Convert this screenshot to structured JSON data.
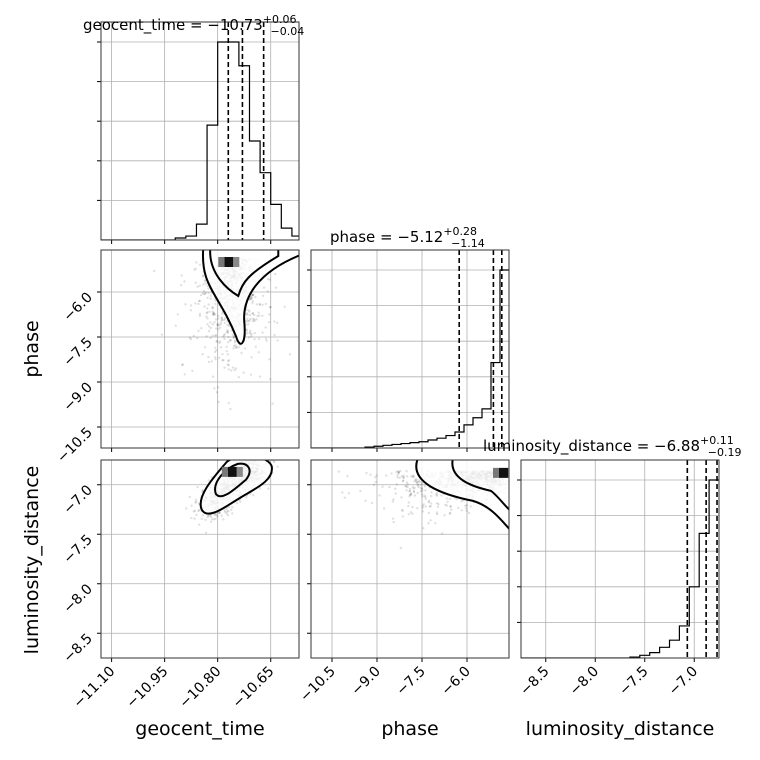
{
  "chart_data": {
    "type": "corner",
    "parameters": [
      "geocent_time",
      "phase",
      "luminosity_distance"
    ],
    "ranges": {
      "geocent_time": [
        -11.13,
        -10.57
      ],
      "phase": [
        -11.2,
        -4.6
      ],
      "luminosity_distance": [
        -8.75,
        -6.75
      ]
    },
    "ticks": {
      "geocent_time": {
        "values": [
          -11.1,
          -10.95,
          -10.8,
          -10.65
        ],
        "labels": [
          "−11.10",
          "−10.95",
          "−10.80",
          "−10.65"
        ]
      },
      "phase": {
        "values": [
          -10.5,
          -9.0,
          -7.5,
          -6.0
        ],
        "labels": [
          "−10.5",
          "−9.0",
          "−7.5",
          "−6.0"
        ]
      },
      "luminosity_distance": {
        "values": [
          -8.5,
          -8.0,
          -7.5,
          -7.0
        ],
        "labels": [
          "−8.5",
          "−8.0",
          "−7.5",
          "−7.0"
        ]
      }
    },
    "diagonal": [
      {
        "parameter": "geocent_time",
        "title": {
          "prefix": "geocent_time = −10.73",
          "plus": "+0.06",
          "minus": "−0.04"
        },
        "median": -10.73,
        "q_low": -10.77,
        "q_high": -10.67,
        "bin_edges": [
          -11.13,
          -11.1,
          -11.07,
          -11.04,
          -11.01,
          -10.98,
          -10.95,
          -10.92,
          -10.89,
          -10.86,
          -10.83,
          -10.8,
          -10.77,
          -10.74,
          -10.71,
          -10.68,
          -10.65,
          -10.62,
          -10.59,
          -10.57
        ],
        "counts": [
          0,
          0,
          0,
          0,
          0,
          0,
          0,
          1,
          2,
          8,
          58,
          100,
          100,
          88,
          50,
          34,
          18,
          6,
          2
        ]
      },
      {
        "parameter": "phase",
        "title": {
          "prefix": "phase = −5.12",
          "plus": "+0.28",
          "minus": "−1.14"
        },
        "median": -5.12,
        "q_low": -6.26,
        "q_high": -4.84,
        "bin_edges": [
          -11.2,
          -10.9,
          -10.6,
          -10.3,
          -10.0,
          -9.7,
          -9.4,
          -9.1,
          -8.8,
          -8.5,
          -8.2,
          -7.9,
          -7.6,
          -7.3,
          -7.0,
          -6.7,
          -6.4,
          -6.1,
          -5.8,
          -5.5,
          -5.2,
          -4.9,
          -4.6
        ],
        "counts": [
          0,
          0,
          0,
          0,
          0,
          0,
          0.5,
          1,
          1.5,
          2,
          2.5,
          3,
          3.5,
          4.5,
          5.5,
          7,
          9,
          13,
          17,
          22,
          48,
          100
        ]
      },
      {
        "parameter": "luminosity_distance",
        "title": {
          "prefix": "luminosity_distance = −6.88",
          "plus": "+0.11",
          "minus": "−0.19"
        },
        "median": -6.88,
        "q_low": -7.07,
        "q_high": -6.77,
        "bin_edges": [
          -8.75,
          -8.65,
          -8.55,
          -8.45,
          -8.35,
          -8.25,
          -8.15,
          -8.05,
          -7.95,
          -7.85,
          -7.75,
          -7.65,
          -7.55,
          -7.45,
          -7.35,
          -7.25,
          -7.15,
          -7.05,
          -6.95,
          -6.85,
          -6.75
        ],
        "counts": [
          0,
          0,
          0,
          0,
          0,
          0,
          0,
          0,
          0,
          0,
          0,
          0.5,
          1.5,
          3,
          6,
          10,
          18,
          40,
          70,
          100
        ]
      }
    ],
    "pairs": [
      {
        "x": "geocent_time",
        "y": "phase",
        "peak": [
          -10.77,
          -5.0
        ]
      },
      {
        "x": "geocent_time",
        "y": "luminosity_distance",
        "peak": [
          -10.76,
          -6.87
        ]
      },
      {
        "x": "phase",
        "y": "luminosity_distance",
        "peak": [
          -4.8,
          -6.88
        ]
      }
    ],
    "grid": true
  }
}
